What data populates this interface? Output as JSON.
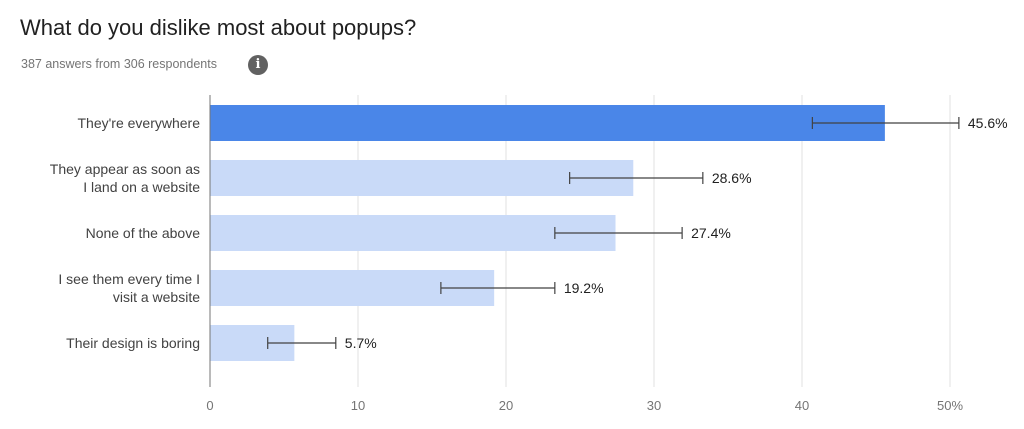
{
  "header": {
    "title": "What do you dislike most about popups?",
    "subtitle": "387 answers from 306 respondents",
    "info_icon": "info-icon"
  },
  "colors": {
    "highlight_bar": "#4a86e8",
    "bar": "#c9daf8",
    "grid": "#e0e0e0",
    "axis": "#9e9e9e",
    "text": "#424242"
  },
  "chart_data": {
    "type": "bar",
    "orientation": "horizontal",
    "title": "What do you dislike most about popups?",
    "subtitle": "387 answers from 306 respondents",
    "categories": [
      [
        "They're everywhere"
      ],
      [
        "They appear as soon as",
        "I land on a website"
      ],
      [
        "None of the above"
      ],
      [
        "I see them every time I",
        "visit a website"
      ],
      [
        "Their design is boring"
      ]
    ],
    "values": [
      45.6,
      28.6,
      27.4,
      19.2,
      5.7
    ],
    "value_labels": [
      "45.6%",
      "28.6%",
      "27.4%",
      "19.2%",
      "5.7%"
    ],
    "error_bars": [
      [
        40.7,
        50.6
      ],
      [
        24.3,
        33.3
      ],
      [
        23.3,
        31.9
      ],
      [
        15.6,
        23.3
      ],
      [
        3.9,
        8.5
      ]
    ],
    "highlighted_index": 0,
    "xlim": [
      0,
      50
    ],
    "xticks": [
      0,
      10,
      20,
      30,
      40,
      50
    ],
    "xtick_labels": [
      "0",
      "10",
      "20",
      "30",
      "40",
      "50%"
    ],
    "xlabel": "",
    "ylabel": "",
    "grid": true
  }
}
